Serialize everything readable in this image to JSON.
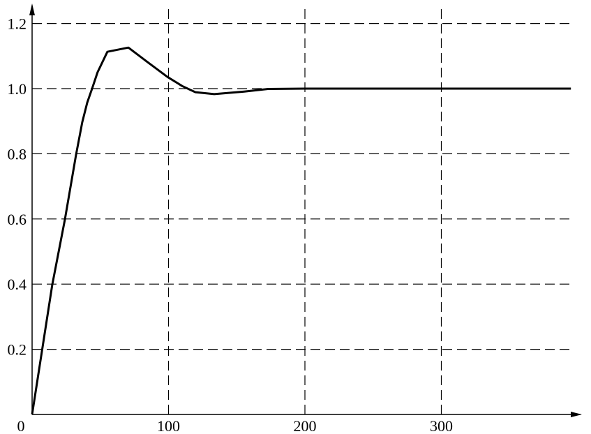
{
  "chart_data": {
    "type": "line",
    "title": "",
    "xlabel": "",
    "ylabel": "",
    "xlim": [
      0,
      400
    ],
    "ylim": [
      0,
      1.25
    ],
    "grid": true,
    "grid_style": "dashed",
    "x_ticks": [
      100,
      200,
      300
    ],
    "x_tick_labels": [
      "100",
      "200",
      "300"
    ],
    "y_ticks": [
      0.2,
      0.4,
      0.6,
      0.8,
      1.0,
      1.2
    ],
    "y_tick_labels": [
      "0.2",
      "0.4",
      "0.6",
      "0.8",
      "1.0",
      "1.2"
    ],
    "origin_label": "0",
    "line_color": "#000000",
    "series": [
      {
        "x": [
          0,
          14.8,
          24,
          32.2,
          36.8,
          40.4,
          44,
          48,
          55.2,
          70.6,
          85,
          99.2,
          110,
          119.7,
          133.5,
          155.5,
          173,
          200,
          300,
          395
        ],
        "y": [
          0,
          0.398,
          0.597,
          0.797,
          0.897,
          0.957,
          1.0,
          1.05,
          1.113,
          1.126,
          1.08,
          1.036,
          1.008,
          0.989,
          0.983,
          0.991,
          0.999,
          1.0,
          1.0,
          1.0
        ]
      }
    ]
  }
}
